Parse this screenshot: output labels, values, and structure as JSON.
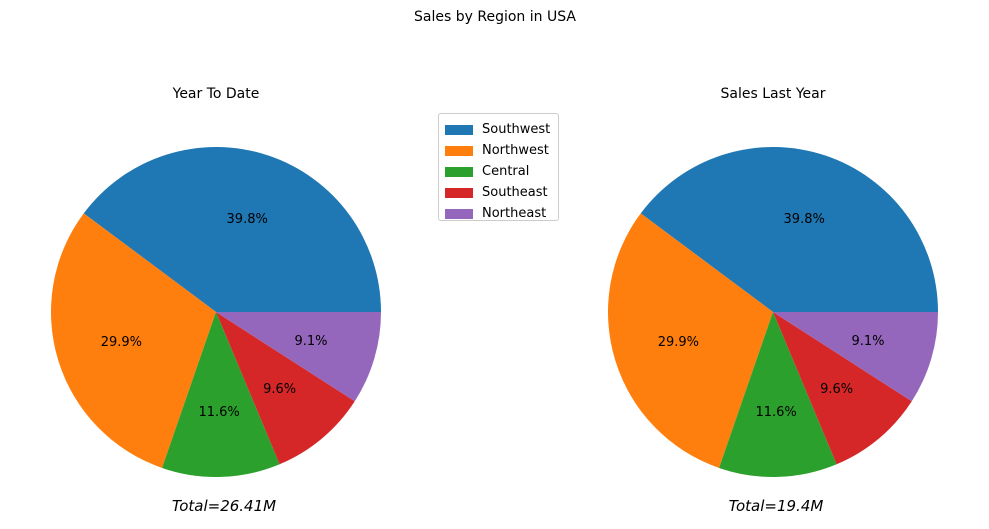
{
  "suptitle": "Sales by Region in USA",
  "legend": {
    "placement": "between-charts-top",
    "items": [
      {
        "label": "Southwest",
        "color": "#1f77b4"
      },
      {
        "label": "Northwest",
        "color": "#ff7f0e"
      },
      {
        "label": "Central",
        "color": "#2ca02c"
      },
      {
        "label": "Southeast",
        "color": "#d62728"
      },
      {
        "label": "Northeast",
        "color": "#9467bd"
      }
    ]
  },
  "chart_data": [
    {
      "type": "pie",
      "title": "Year To Date",
      "categories": [
        "Southwest",
        "Northwest",
        "Central",
        "Southeast",
        "Northeast"
      ],
      "values": [
        39.8,
        29.9,
        11.6,
        9.6,
        9.1
      ],
      "labels": [
        "39.8%",
        "29.9%",
        "11.6%",
        "9.6%",
        "9.1%"
      ],
      "colors": [
        "#1f77b4",
        "#ff7f0e",
        "#2ca02c",
        "#d62728",
        "#9467bd"
      ],
      "start_angle_deg": 0,
      "direction": "counterclockwise",
      "xlabel": "Total=26.41M"
    },
    {
      "type": "pie",
      "title": "Sales Last Year",
      "categories": [
        "Southwest",
        "Northwest",
        "Central",
        "Southeast",
        "Northeast"
      ],
      "values": [
        39.8,
        29.9,
        11.6,
        9.6,
        9.1
      ],
      "labels": [
        "39.8%",
        "29.9%",
        "11.6%",
        "9.6%",
        "9.1%"
      ],
      "colors": [
        "#1f77b4",
        "#ff7f0e",
        "#2ca02c",
        "#d62728",
        "#9467bd"
      ],
      "start_angle_deg": 0,
      "direction": "counterclockwise",
      "xlabel": "Total=19.4M"
    }
  ]
}
